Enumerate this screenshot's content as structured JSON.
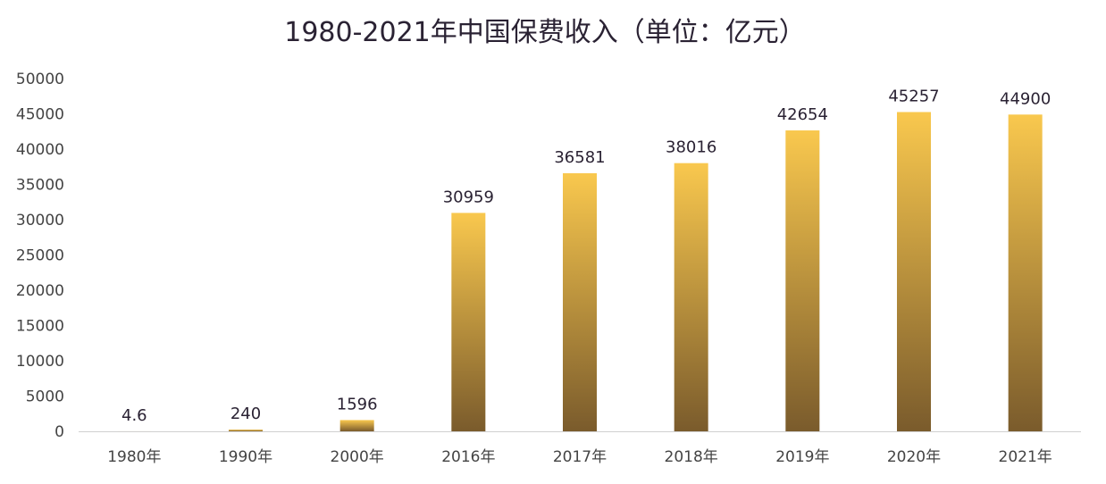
{
  "chart_data": {
    "type": "bar",
    "title": "1980-2021年中国保费收入（单位：亿元）",
    "xlabel": "",
    "ylabel": "",
    "categories": [
      "1980年",
      "1990年",
      "2000年",
      "2016年",
      "2017年",
      "2018年",
      "2019年",
      "2020年",
      "2021年"
    ],
    "values": [
      4.6,
      240,
      1596,
      30959,
      36581,
      38016,
      42654,
      45257,
      44900
    ],
    "data_labels": [
      "4.6",
      "240",
      "1596",
      "30959",
      "36581",
      "38016",
      "42654",
      "45257",
      "44900"
    ],
    "ylim": [
      0,
      50000
    ],
    "yticks": [
      0,
      5000,
      10000,
      15000,
      20000,
      25000,
      30000,
      35000,
      40000,
      45000,
      50000
    ],
    "grid": false,
    "legend": "none",
    "colors": {
      "bar_top": "#f9c84e",
      "bar_bottom": "#7a5b2c",
      "axis": "#d0d0d0"
    }
  }
}
